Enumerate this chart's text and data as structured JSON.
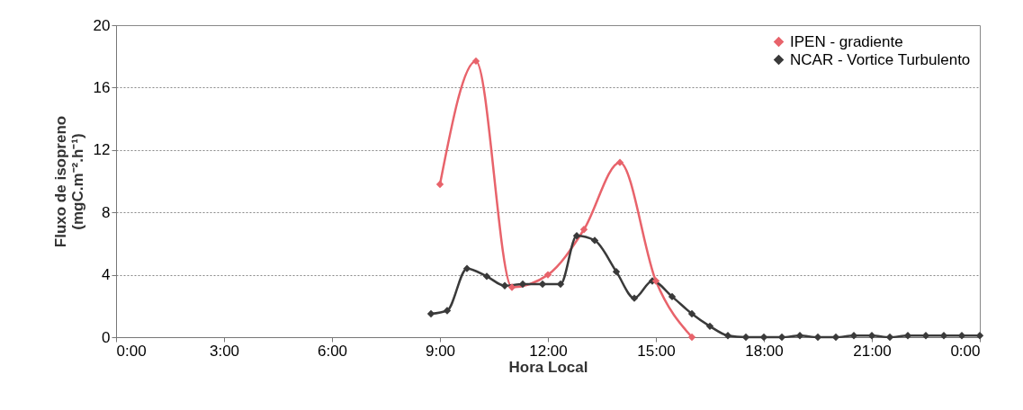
{
  "chart_data": {
    "type": "line",
    "xlabel": "Hora Local",
    "ylabel": "Fluxo de isopreno\n(mgC.m⁻².h⁻¹)",
    "xlim": [
      0,
      24
    ],
    "xticks": [
      {
        "value": 0,
        "label": "0:00"
      },
      {
        "value": 3,
        "label": "3:00"
      },
      {
        "value": 6,
        "label": "6:00"
      },
      {
        "value": 9,
        "label": "9:00"
      },
      {
        "value": 12,
        "label": "12:00"
      },
      {
        "value": 15,
        "label": "15:00"
      },
      {
        "value": 18,
        "label": "18:00"
      },
      {
        "value": 21,
        "label": "21:00"
      },
      {
        "value": 24,
        "label": "0:00"
      }
    ],
    "ylim": [
      0,
      20
    ],
    "yticks": [
      0,
      4,
      8,
      12,
      16,
      20
    ],
    "grid": "y",
    "legend": "top right",
    "marker": "diamond",
    "line_style": "solid",
    "series": [
      {
        "name": "IPEN - gradiente",
        "color": "#e8636b",
        "x": [
          9,
          10,
          11,
          12,
          13,
          14,
          15,
          16
        ],
        "values": [
          9.8,
          17.7,
          3.2,
          4.0,
          6.9,
          11.2,
          3.6,
          0
        ]
      },
      {
        "name": "NCAR - Vortice Turbulento",
        "color": "#3a3a3a",
        "x": [
          8.75,
          9.2,
          9.75,
          10.3,
          10.8,
          11.3,
          11.85,
          12.35,
          12.8,
          13.3,
          13.9,
          14.4,
          14.9,
          15.45,
          16.0,
          16.5,
          17.0,
          17.5,
          18.0,
          18.5,
          19.0,
          19.5,
          20.0,
          20.5,
          21.0,
          21.5,
          22.0,
          22.5,
          23.0,
          23.5,
          24.0
        ],
        "values": [
          1.5,
          1.7,
          4.4,
          3.9,
          3.3,
          3.4,
          3.4,
          3.4,
          6.5,
          6.2,
          4.2,
          2.5,
          3.6,
          2.6,
          1.5,
          0.7,
          0.1,
          0,
          0,
          0,
          0.1,
          0,
          0,
          0.1,
          0.1,
          0,
          0.1,
          0.1,
          0.1,
          0.1,
          0.1
        ]
      }
    ]
  }
}
